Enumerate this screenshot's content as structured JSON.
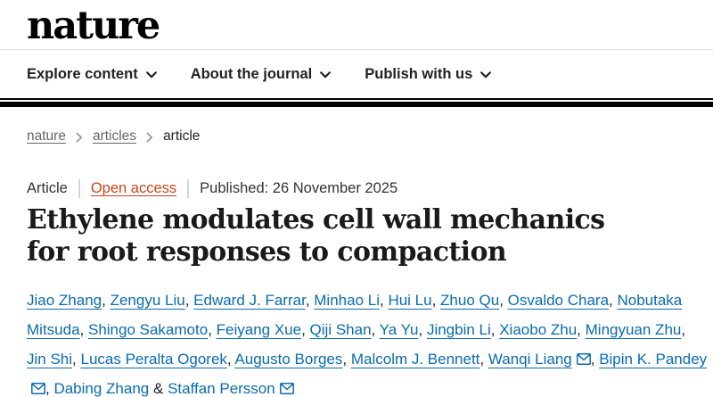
{
  "header": {
    "logo_text": "nature"
  },
  "nav": {
    "items": [
      {
        "label": "Explore content"
      },
      {
        "label": "About the journal"
      },
      {
        "label": "Publish with us"
      }
    ]
  },
  "breadcrumb": {
    "items": [
      {
        "label": "nature"
      },
      {
        "label": "articles"
      },
      {
        "label": "article"
      }
    ]
  },
  "meta": {
    "article_type": "Article",
    "open_access": "Open access",
    "published": "Published: 26 November 2025"
  },
  "article": {
    "title": "Ethylene modulates cell wall mechanics for root responses to compaction"
  },
  "authors": {
    "separator": ", ",
    "last_separator": " & ",
    "list": [
      {
        "name": "Jiao Zhang"
      },
      {
        "name": "Zengyu Liu"
      },
      {
        "name": "Edward J. Farrar"
      },
      {
        "name": "Minhao Li"
      },
      {
        "name": "Hui Lu"
      },
      {
        "name": "Zhuo Qu"
      },
      {
        "name": "Osvaldo Chara"
      },
      {
        "name": "Nobutaka Mitsuda"
      },
      {
        "name": "Shingo Sakamoto"
      },
      {
        "name": "Feiyang Xue"
      },
      {
        "name": "Qiji Shan"
      },
      {
        "name": "Ya Yu"
      },
      {
        "name": "Jingbin Li"
      },
      {
        "name": "Xiaobo Zhu"
      },
      {
        "name": "Mingyuan Zhu"
      },
      {
        "name": "Jin Shi"
      },
      {
        "name": "Lucas Peralta Ogorek"
      },
      {
        "name": "Augusto Borges"
      },
      {
        "name": "Malcolm J. Bennett"
      },
      {
        "name": "Wanqi Liang",
        "email_icon": true
      },
      {
        "name": "Bipin K. Pandey",
        "email_icon": true
      },
      {
        "name": "Dabing Zhang"
      },
      {
        "name": "Staffan Persson",
        "email_icon": true
      }
    ]
  },
  "icons": {
    "nav_chevron": "chevron-down",
    "breadcrumb_separator": "chevron-right",
    "email": "envelope"
  },
  "colors": {
    "link_blue": "#0a6bb0",
    "open_access_orange": "#c6451c",
    "rule_black": "#000000",
    "text_dark": "#222222",
    "crumb_gray": "#666666"
  }
}
